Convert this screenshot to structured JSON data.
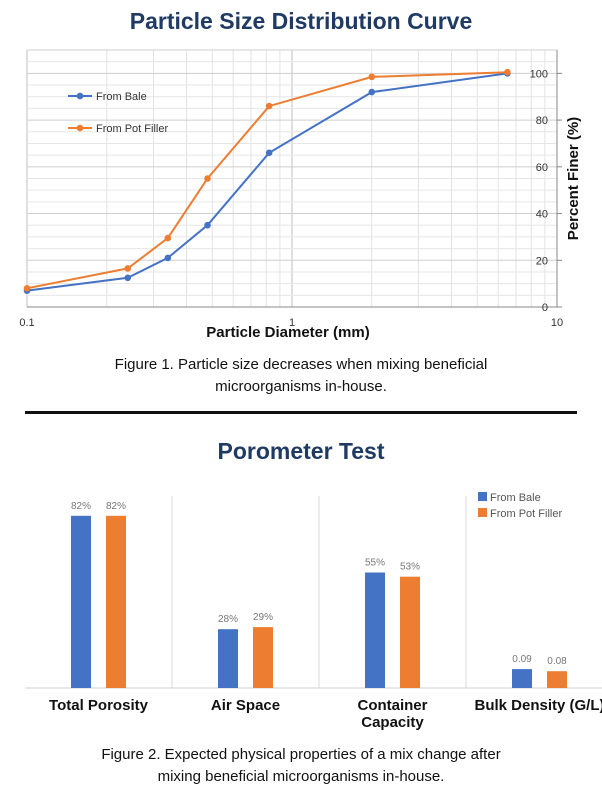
{
  "figure1": {
    "title": "Particle Size Distribution Curve",
    "caption_line1": "Figure 1. Particle size decreases when mixing beneficial",
    "caption_line2": "microorganisms in-house."
  },
  "figure2": {
    "title": "Porometer Test",
    "caption_line1": "Figure 2. Expected physical properties of a mix change after",
    "caption_line2": "mixing beneficial microorganisms in-house."
  },
  "chart_data": [
    {
      "type": "line",
      "title": "Particle Size Distribution Curve",
      "xlabel": "Particle Diameter (mm)",
      "ylabel": "Percent Finer (%)",
      "x_scale": "log",
      "xlim": [
        0.1,
        10
      ],
      "ylim": [
        0,
        110
      ],
      "x_ticks": [
        "0.1",
        "1",
        "10"
      ],
      "y_ticks": [
        "0",
        "20",
        "40",
        "60",
        "80",
        "100"
      ],
      "grid": true,
      "legend": "top-left",
      "series": [
        {
          "name": "From Bale",
          "color": "#4472c4",
          "points": [
            [
              0.1,
              7
            ],
            [
              0.24,
              12.5
            ],
            [
              0.34,
              21
            ],
            [
              0.48,
              35
            ],
            [
              0.82,
              66
            ],
            [
              2,
              92
            ],
            [
              6.5,
              100
            ]
          ]
        },
        {
          "name": "From Pot Filler",
          "color": "#ed7d31",
          "points": [
            [
              0.1,
              8
            ],
            [
              0.24,
              16.5
            ],
            [
              0.34,
              29.5
            ],
            [
              0.48,
              55
            ],
            [
              0.82,
              86
            ],
            [
              2,
              98.5
            ],
            [
              6.5,
              100.5
            ]
          ]
        }
      ]
    },
    {
      "type": "bar",
      "title": "Porometer Test",
      "categories": [
        "Total Porosity",
        "Air Space",
        "Container Capacity",
        "Bulk Density (G/L)"
      ],
      "category_lines": [
        [
          "Total Porosity"
        ],
        [
          "Air Space"
        ],
        [
          "Container",
          "Capacity"
        ],
        [
          "Bulk Density (G/L)"
        ]
      ],
      "ylim": [
        0,
        1
      ],
      "legend": "top-right",
      "series": [
        {
          "name": "From Bale",
          "color": "#4472c4",
          "values": [
            0.82,
            0.28,
            0.55,
            0.09
          ],
          "labels": [
            "82%",
            "28%",
            "55%",
            "0.09"
          ]
        },
        {
          "name": "From Pot Filler",
          "color": "#ed7d31",
          "values": [
            0.82,
            0.29,
            0.53,
            0.08
          ],
          "labels": [
            "82%",
            "29%",
            "53%",
            "0.08"
          ]
        }
      ]
    }
  ]
}
